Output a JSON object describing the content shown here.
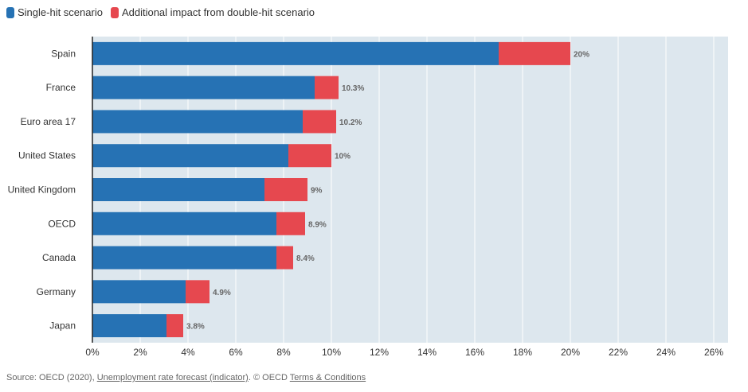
{
  "colors": {
    "single": "#2672b4",
    "additional": "#e6484f",
    "plot_bg": "#dde7ee",
    "grid": "#ffffff",
    "axis": "#222222"
  },
  "legend": {
    "single_label": "Single-hit scenario",
    "additional_label": "Additional impact from double-hit scenario"
  },
  "footer": {
    "prefix": "Source: OECD (2020), ",
    "indicator_link": "Unemployment rate forecast (indicator)",
    "mid": ". © OECD ",
    "terms_link": "Terms & Conditions"
  },
  "chart_data": {
    "type": "bar",
    "orientation": "horizontal",
    "stacked": true,
    "categories": [
      "Spain",
      "France",
      "Euro area 17",
      "United States",
      "United Kingdom",
      "OECD",
      "Canada",
      "Germany",
      "Japan"
    ],
    "series": [
      {
        "name": "Single-hit scenario",
        "values": [
          17.0,
          9.3,
          8.8,
          8.2,
          7.2,
          7.7,
          7.7,
          3.9,
          3.1
        ]
      },
      {
        "name": "Additional impact from double-hit scenario",
        "values": [
          3.0,
          1.0,
          1.4,
          1.8,
          1.8,
          1.2,
          0.7,
          1.0,
          0.7
        ]
      }
    ],
    "total_labels": [
      "20%",
      "10.3%",
      "10.2%",
      "10%",
      "9%",
      "8.9%",
      "8.4%",
      "4.9%",
      "3.8%"
    ],
    "xlim": [
      0,
      26
    ],
    "xticks": [
      "0%",
      "2%",
      "4%",
      "6%",
      "8%",
      "10%",
      "12%",
      "14%",
      "16%",
      "18%",
      "20%",
      "22%",
      "24%",
      "26%"
    ],
    "grid": true,
    "legend_position": "top-left"
  }
}
